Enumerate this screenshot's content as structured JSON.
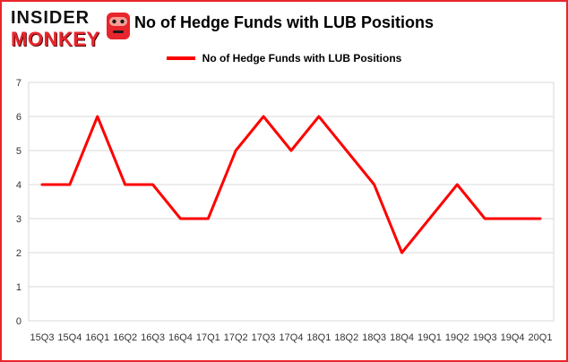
{
  "header": {
    "logo_line1": "INSIDER",
    "logo_line2": "MONKEY",
    "title": "No of Hedge Funds with LUB Positions"
  },
  "legend": {
    "label": "No of Hedge Funds with LUB Positions",
    "line_color": "#ff0000"
  },
  "colors": {
    "accent_red": "#ff0000",
    "card_border": "#e8262d",
    "grid": "#d8d8d8",
    "axis_text": "#333333"
  },
  "chart_data": {
    "type": "line",
    "title": "No of Hedge Funds with LUB Positions",
    "xlabel": "",
    "ylabel": "",
    "categories": [
      "15Q3",
      "15Q4",
      "16Q1",
      "16Q2",
      "16Q3",
      "16Q4",
      "17Q1",
      "17Q2",
      "17Q3",
      "17Q4",
      "18Q1",
      "18Q2",
      "18Q3",
      "18Q4",
      "19Q1",
      "19Q2",
      "19Q3",
      "19Q4",
      "20Q1"
    ],
    "series": [
      {
        "name": "No of Hedge Funds with LUB Positions",
        "color": "#ff0000",
        "values": [
          4,
          4,
          6,
          4,
          4,
          3,
          3,
          5,
          6,
          5,
          6,
          5,
          4,
          2,
          3,
          4,
          3,
          3,
          3
        ]
      }
    ],
    "ylim": [
      0,
      7
    ],
    "yticks": [
      0,
      1,
      2,
      3,
      4,
      5,
      6,
      7
    ],
    "grid": true,
    "legend_position": "top"
  }
}
